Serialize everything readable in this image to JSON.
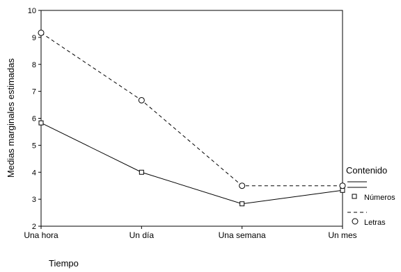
{
  "chart_data": {
    "type": "line",
    "xlabel": "Tiempo",
    "ylabel": "Medias marginales estimadas",
    "categories": [
      "Una hora",
      "Un día",
      "Una semana",
      "Un mes"
    ],
    "ylim": [
      2,
      10
    ],
    "yticks": [
      2,
      3,
      4,
      5,
      6,
      7,
      8,
      9,
      10
    ],
    "legend_title": "Contenido",
    "legend_position": "right",
    "series": [
      {
        "name": "Números",
        "values": [
          5.83,
          4.0,
          2.83,
          3.33
        ],
        "line": "solid",
        "marker": "square"
      },
      {
        "name": "Letras",
        "values": [
          9.17,
          6.67,
          3.5,
          3.5
        ],
        "line": "dashed",
        "marker": "circle"
      }
    ]
  }
}
